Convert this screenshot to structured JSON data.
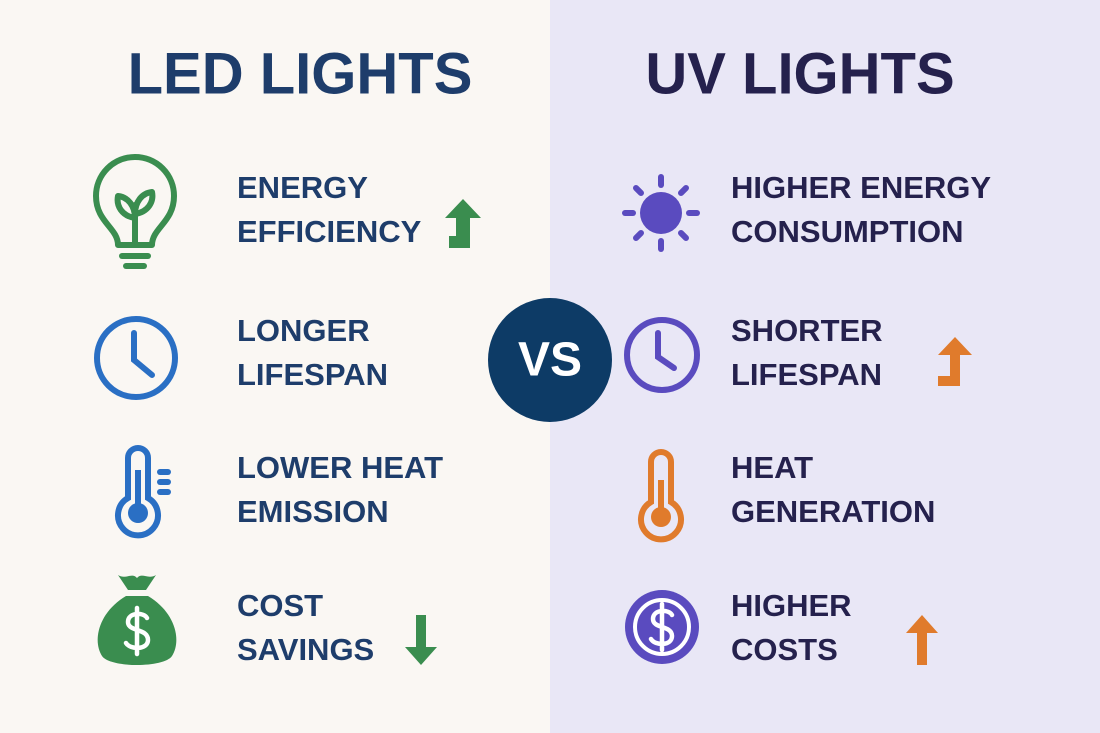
{
  "vs": "VS",
  "left": {
    "title": "LED LIGHTS",
    "items": [
      {
        "lines": [
          "ENERGY",
          "EFFICIENCY"
        ]
      },
      {
        "lines": [
          "LONGER",
          "LIFESPAN"
        ]
      },
      {
        "lines": [
          "LOWER HEAT",
          "EMISSION"
        ]
      },
      {
        "lines": [
          "COST",
          "SAVINGS"
        ]
      }
    ]
  },
  "right": {
    "title": "UV LIGHTS",
    "items": [
      {
        "lines": [
          "HIGHER ENERGY",
          "CONSUMPTION"
        ]
      },
      {
        "lines": [
          "SHORTER",
          "LIFESPAN"
        ]
      },
      {
        "lines": [
          "HEAT",
          "GENERATION"
        ]
      },
      {
        "lines": [
          "HIGHER",
          "COSTS"
        ]
      }
    ]
  }
}
